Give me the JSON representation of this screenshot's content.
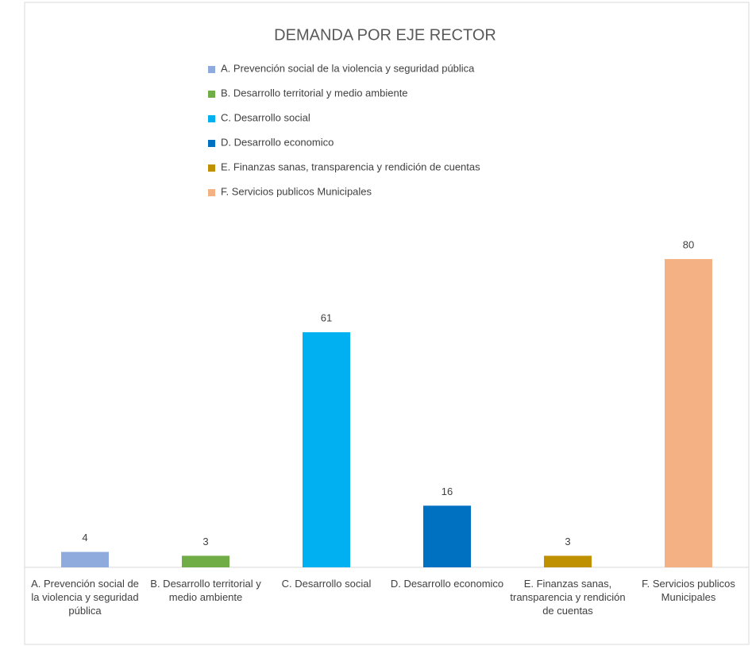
{
  "chart_data": {
    "type": "bar",
    "title": "DEMANDA POR EJE RECTOR",
    "categories": [
      "A. Prevención social de la violencia y seguridad pública",
      "B. Desarrollo territorial y medio ambiente",
      "C. Desarrollo social",
      "D. Desarrollo economico",
      "E. Finanzas sanas, transparencia y rendición de cuentas",
      "F. Servicios publicos Municipales"
    ],
    "values": [
      4,
      3,
      61,
      16,
      3,
      80
    ],
    "colors": [
      "#8faadc",
      "#70ad47",
      "#00b0f0",
      "#0070c0",
      "#bf9000",
      "#f4b183"
    ],
    "legend": "top"
  }
}
